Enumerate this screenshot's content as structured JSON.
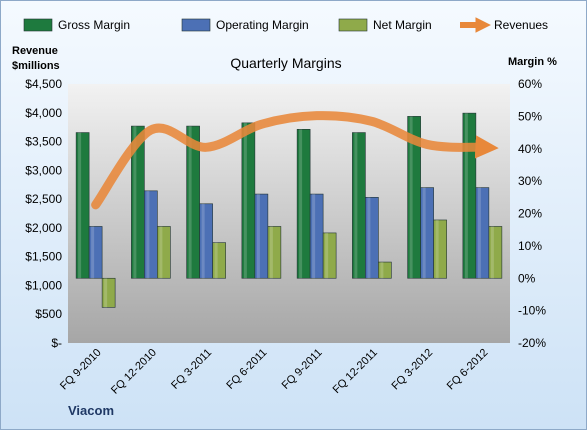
{
  "colors": {
    "gross": "#1E7A3E",
    "operating": "#4C70B5",
    "net": "#8FAA4A",
    "revenue": "#E8883A",
    "background_top": "#F5FAFF",
    "background_bottom": "#CDE2F6",
    "plot_top": "#F2F2F2",
    "plot_bottom": "#A6A6A6"
  },
  "chart_data": {
    "type": "bar",
    "title": "Quarterly Margins",
    "company_label": "Viacom",
    "categories": [
      "FQ 9-2010",
      "FQ 12-2010",
      "FQ 3-2011",
      "FQ 6-2011",
      "FQ 9-2011",
      "FQ 12-2011",
      "FQ 3-2012",
      "FQ 6-2012"
    ],
    "left_axis": {
      "label_line1": "Revenue",
      "label_line2": "$millions",
      "range": [
        0,
        4500
      ],
      "ticks": [
        0,
        500,
        1000,
        1500,
        2000,
        2500,
        3000,
        3500,
        4000,
        4500
      ],
      "tick_labels": [
        "$-",
        "$500",
        "$1,000",
        "$1,500",
        "$2,000",
        "$2,500",
        "$3,000",
        "$3,500",
        "$4,000",
        "$4,500"
      ]
    },
    "right_axis": {
      "label": "Margin %",
      "range": [
        -20,
        60
      ],
      "ticks": [
        -20,
        -10,
        0,
        10,
        20,
        30,
        40,
        50,
        60
      ],
      "tick_labels": [
        "-20%",
        "-10%",
        "0%",
        "10%",
        "20%",
        "30%",
        "40%",
        "50%",
        "60%"
      ]
    },
    "series": [
      {
        "name": "Gross Margin",
        "axis": "right",
        "kind": "bar",
        "values": [
          45,
          47,
          47,
          48,
          46,
          45,
          50,
          51
        ]
      },
      {
        "name": "Operating Margin",
        "axis": "right",
        "kind": "bar",
        "values": [
          16,
          27,
          23,
          26,
          26,
          25,
          28,
          28
        ]
      },
      {
        "name": "Net Margin",
        "axis": "right",
        "kind": "bar",
        "values": [
          -9,
          16,
          11,
          16,
          14,
          5,
          18,
          16
        ]
      },
      {
        "name": "Revenues",
        "axis": "left",
        "kind": "line",
        "values": [
          2400,
          3700,
          3400,
          3800,
          3950,
          3850,
          3450,
          3400
        ]
      }
    ],
    "legend_position": "top",
    "grid": false
  }
}
